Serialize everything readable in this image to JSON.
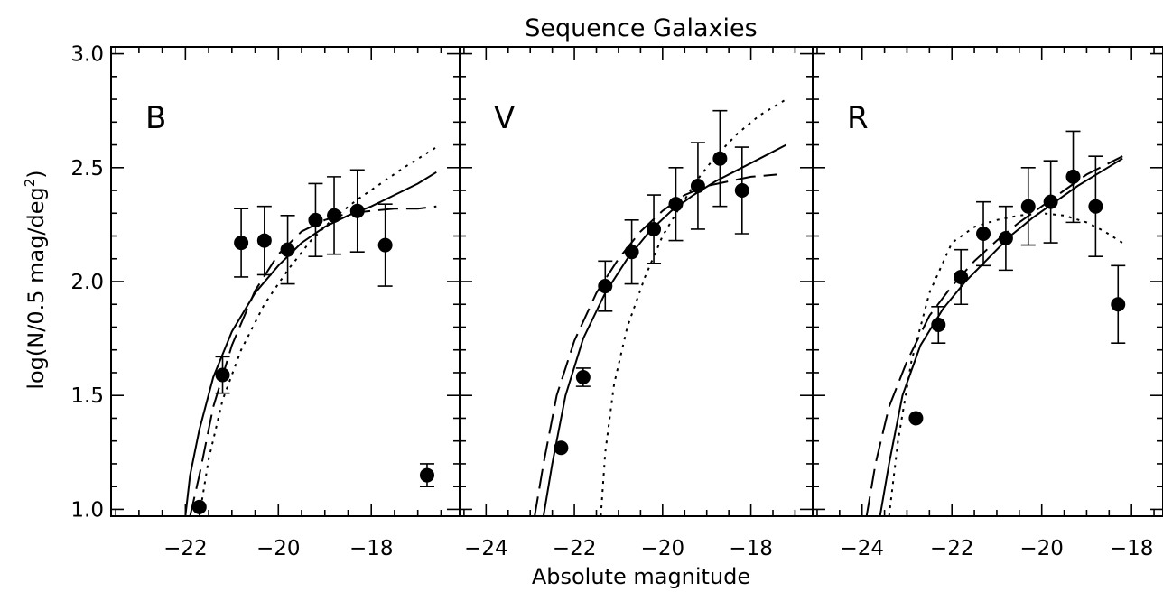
{
  "figure": {
    "title": "Sequence Galaxies",
    "xlabel": "Absolute magnitude",
    "ylabel_main": "log(N/0.5 mag/deg",
    "ylabel_sup": "2",
    "ylabel_tail": ")"
  },
  "chart_data": {
    "type": "scatter",
    "title": "Sequence Galaxies",
    "xlabel": "Absolute magnitude",
    "ylabel": "log(N/0.5 mag/deg^2)",
    "ylim": [
      0.97,
      3.03
    ],
    "yticks": [
      1.0,
      1.5,
      2.0,
      2.5,
      3.0
    ],
    "grid": false,
    "panels": [
      {
        "label": "B",
        "xlim": [
          -23.6,
          -16.1
        ],
        "xticks": [
          -22,
          -20,
          -18
        ],
        "points": [
          {
            "x": -21.7,
            "y": 1.01,
            "err": null
          },
          {
            "x": -21.2,
            "y": 1.59,
            "err": 0.08
          },
          {
            "x": -20.8,
            "y": 2.17,
            "err": 0.15
          },
          {
            "x": -20.3,
            "y": 2.18,
            "err": 0.15
          },
          {
            "x": -19.8,
            "y": 2.14,
            "err": 0.15
          },
          {
            "x": -19.2,
            "y": 2.27,
            "err": 0.16
          },
          {
            "x": -18.8,
            "y": 2.29,
            "err": 0.17
          },
          {
            "x": -18.3,
            "y": 2.31,
            "err": 0.18
          },
          {
            "x": -17.7,
            "y": 2.16,
            "err": 0.18
          },
          {
            "x": -16.8,
            "y": 1.15,
            "err": 0.05
          }
        ],
        "curves": {
          "solid": [
            [
              -22.0,
              0.97
            ],
            [
              -21.9,
              1.15
            ],
            [
              -21.7,
              1.35
            ],
            [
              -21.4,
              1.58
            ],
            [
              -21.0,
              1.78
            ],
            [
              -20.5,
              1.95
            ],
            [
              -20.0,
              2.07
            ],
            [
              -19.5,
              2.17
            ],
            [
              -19.0,
              2.24
            ],
            [
              -18.5,
              2.29
            ],
            [
              -18.0,
              2.33
            ],
            [
              -17.5,
              2.38
            ],
            [
              -17.0,
              2.43
            ],
            [
              -16.6,
              2.48
            ]
          ],
          "dashed": [
            [
              -21.9,
              0.97
            ],
            [
              -21.7,
              1.15
            ],
            [
              -21.4,
              1.45
            ],
            [
              -21.0,
              1.72
            ],
            [
              -20.5,
              1.96
            ],
            [
              -20.0,
              2.12
            ],
            [
              -19.5,
              2.22
            ],
            [
              -19.0,
              2.27
            ],
            [
              -18.5,
              2.3
            ],
            [
              -18.0,
              2.31
            ],
            [
              -17.5,
              2.32
            ],
            [
              -17.0,
              2.32
            ],
            [
              -16.6,
              2.33
            ]
          ],
          "dotted": [
            [
              -21.7,
              0.97
            ],
            [
              -21.5,
              1.22
            ],
            [
              -21.2,
              1.48
            ],
            [
              -20.8,
              1.7
            ],
            [
              -20.3,
              1.9
            ],
            [
              -19.8,
              2.05
            ],
            [
              -19.3,
              2.18
            ],
            [
              -18.8,
              2.28
            ],
            [
              -18.3,
              2.36
            ],
            [
              -17.8,
              2.43
            ],
            [
              -17.3,
              2.5
            ],
            [
              -16.6,
              2.59
            ]
          ]
        }
      },
      {
        "label": "V",
        "xlim": [
          -24.6,
          -16.6
        ],
        "xticks": [
          -24,
          -22,
          -20,
          -18
        ],
        "points": [
          {
            "x": -22.3,
            "y": 1.27,
            "err": null
          },
          {
            "x": -21.8,
            "y": 1.58,
            "err": 0.04
          },
          {
            "x": -21.3,
            "y": 1.98,
            "err": 0.11
          },
          {
            "x": -20.7,
            "y": 2.13,
            "err": 0.14
          },
          {
            "x": -20.2,
            "y": 2.23,
            "err": 0.15
          },
          {
            "x": -19.7,
            "y": 2.34,
            "err": 0.16
          },
          {
            "x": -19.2,
            "y": 2.42,
            "err": 0.19
          },
          {
            "x": -18.7,
            "y": 2.54,
            "err": 0.21
          },
          {
            "x": -18.2,
            "y": 2.4,
            "err": 0.19
          }
        ],
        "curves": {
          "solid": [
            [
              -22.7,
              0.97
            ],
            [
              -22.5,
              1.2
            ],
            [
              -22.2,
              1.5
            ],
            [
              -21.8,
              1.75
            ],
            [
              -21.3,
              1.95
            ],
            [
              -20.8,
              2.1
            ],
            [
              -20.3,
              2.22
            ],
            [
              -19.8,
              2.31
            ],
            [
              -19.3,
              2.38
            ],
            [
              -18.8,
              2.44
            ],
            [
              -18.3,
              2.49
            ],
            [
              -17.8,
              2.54
            ],
            [
              -17.2,
              2.6
            ]
          ],
          "dashed": [
            [
              -22.9,
              0.97
            ],
            [
              -22.7,
              1.2
            ],
            [
              -22.4,
              1.5
            ],
            [
              -22.0,
              1.74
            ],
            [
              -21.5,
              1.95
            ],
            [
              -21.0,
              2.1
            ],
            [
              -20.5,
              2.22
            ],
            [
              -20.0,
              2.31
            ],
            [
              -19.5,
              2.38
            ],
            [
              -19.0,
              2.42
            ],
            [
              -18.5,
              2.44
            ],
            [
              -18.0,
              2.46
            ],
            [
              -17.4,
              2.47
            ]
          ],
          "dotted": [
            [
              -21.4,
              0.97
            ],
            [
              -21.3,
              1.25
            ],
            [
              -21.1,
              1.55
            ],
            [
              -20.8,
              1.8
            ],
            [
              -20.4,
              2.02
            ],
            [
              -20.0,
              2.2
            ],
            [
              -19.6,
              2.33
            ],
            [
              -19.2,
              2.45
            ],
            [
              -18.8,
              2.55
            ],
            [
              -18.3,
              2.65
            ],
            [
              -17.8,
              2.73
            ],
            [
              -17.2,
              2.8
            ]
          ]
        }
      },
      {
        "label": "R",
        "xlim": [
          -25.1,
          -17.3
        ],
        "xticks": [
          -24,
          -22,
          -20,
          -18
        ],
        "points": [
          {
            "x": -22.8,
            "y": 1.4,
            "err": null
          },
          {
            "x": -22.3,
            "y": 1.81,
            "err": 0.08
          },
          {
            "x": -21.8,
            "y": 2.02,
            "err": 0.12
          },
          {
            "x": -21.3,
            "y": 2.21,
            "err": 0.14
          },
          {
            "x": -20.8,
            "y": 2.19,
            "err": 0.14
          },
          {
            "x": -20.3,
            "y": 2.33,
            "err": 0.17
          },
          {
            "x": -19.8,
            "y": 2.35,
            "err": 0.18
          },
          {
            "x": -19.3,
            "y": 2.46,
            "err": 0.2
          },
          {
            "x": -18.8,
            "y": 2.33,
            "err": 0.22
          },
          {
            "x": -18.3,
            "y": 1.9,
            "err": 0.17
          }
        ],
        "curves": {
          "solid": [
            [
              -23.6,
              0.97
            ],
            [
              -23.4,
              1.2
            ],
            [
              -23.1,
              1.5
            ],
            [
              -22.7,
              1.72
            ],
            [
              -22.2,
              1.88
            ],
            [
              -21.7,
              2.0
            ],
            [
              -21.2,
              2.1
            ],
            [
              -20.7,
              2.2
            ],
            [
              -20.2,
              2.28
            ],
            [
              -19.7,
              2.35
            ],
            [
              -19.2,
              2.42
            ],
            [
              -18.7,
              2.48
            ],
            [
              -18.2,
              2.54
            ]
          ],
          "dashed": [
            [
              -23.9,
              0.97
            ],
            [
              -23.7,
              1.2
            ],
            [
              -23.4,
              1.45
            ],
            [
              -23.0,
              1.65
            ],
            [
              -22.5,
              1.85
            ],
            [
              -22.0,
              1.98
            ],
            [
              -21.5,
              2.09
            ],
            [
              -21.0,
              2.18
            ],
            [
              -20.5,
              2.26
            ],
            [
              -20.0,
              2.33
            ],
            [
              -19.5,
              2.4
            ],
            [
              -19.0,
              2.47
            ],
            [
              -18.5,
              2.52
            ],
            [
              -18.2,
              2.55
            ]
          ],
          "dotted": [
            [
              -23.4,
              0.97
            ],
            [
              -23.2,
              1.3
            ],
            [
              -22.9,
              1.65
            ],
            [
              -22.5,
              1.95
            ],
            [
              -22.0,
              2.17
            ],
            [
              -21.5,
              2.24
            ],
            [
              -21.0,
              2.27
            ],
            [
              -20.5,
              2.29
            ],
            [
              -20.0,
              2.3
            ],
            [
              -19.5,
              2.29
            ],
            [
              -19.0,
              2.26
            ],
            [
              -18.6,
              2.22
            ],
            [
              -18.2,
              2.17
            ]
          ]
        }
      }
    ]
  }
}
